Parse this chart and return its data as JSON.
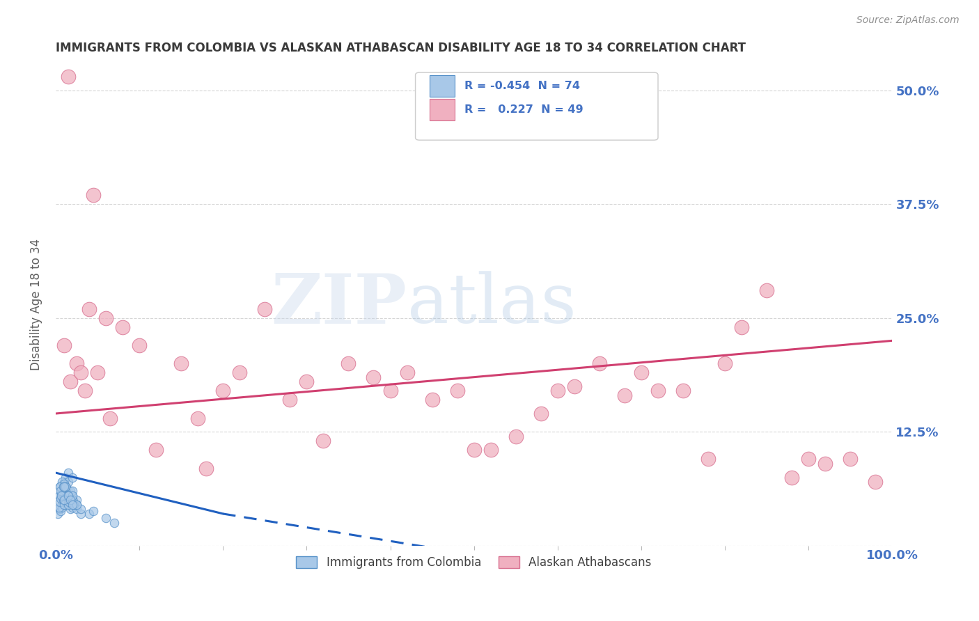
{
  "title": "IMMIGRANTS FROM COLOMBIA VS ALASKAN ATHABASCAN DISABILITY AGE 18 TO 34 CORRELATION CHART",
  "source": "Source: ZipAtlas.com",
  "ylabel": "Disability Age 18 to 34",
  "xlim": [
    0,
    100
  ],
  "ylim": [
    0,
    53
  ],
  "blue_scatter_x": [
    0.3,
    0.5,
    0.6,
    0.8,
    0.8,
    0.8,
    1.0,
    1.0,
    1.0,
    1.0,
    1.0,
    1.0,
    1.2,
    1.2,
    1.4,
    1.5,
    1.5,
    1.5,
    1.5,
    1.6,
    1.8,
    1.8,
    2.0,
    2.0,
    2.0,
    2.0,
    2.2,
    2.5,
    2.5,
    0.4,
    0.4,
    0.5,
    0.6,
    0.7,
    0.9,
    0.9,
    1.0,
    1.1,
    1.3,
    1.5,
    1.6,
    2.0,
    2.3,
    3.0,
    0.5,
    0.8,
    1.0,
    1.2,
    1.5,
    2.0,
    2.5,
    3.0,
    4.0,
    4.5,
    6.0,
    7.0,
    0.5,
    1.0,
    1.2,
    1.5,
    2.0,
    0.6,
    0.9,
    1.2,
    1.4,
    2.0,
    2.2,
    2.5,
    0.7,
    1.0,
    1.5,
    1.8,
    1.0,
    2.0
  ],
  "blue_scatter_y": [
    3.5,
    4.0,
    3.8,
    4.2,
    5.0,
    4.8,
    5.5,
    6.0,
    7.0,
    5.2,
    6.5,
    4.5,
    5.8,
    7.5,
    6.2,
    5.0,
    7.0,
    8.0,
    4.5,
    5.5,
    4.0,
    6.0,
    4.2,
    5.5,
    6.0,
    7.5,
    4.5,
    5.0,
    4.0,
    5.5,
    4.2,
    4.8,
    5.2,
    5.8,
    5.0,
    6.5,
    4.5,
    6.0,
    5.5,
    4.5,
    4.8,
    5.0,
    4.5,
    3.5,
    6.5,
    7.0,
    6.8,
    6.5,
    5.5,
    5.0,
    4.5,
    4.0,
    3.5,
    3.8,
    3.0,
    2.5,
    6.5,
    5.5,
    6.0,
    5.5,
    5.0,
    6.0,
    6.5,
    6.5,
    5.5,
    5.5,
    4.5,
    4.5,
    5.5,
    5.0,
    5.5,
    5.0,
    6.5,
    4.5
  ],
  "pink_scatter_x": [
    1.5,
    1.8,
    2.5,
    3.0,
    3.5,
    4.0,
    5.0,
    6.0,
    8.0,
    10.0,
    12.0,
    15.0,
    17.0,
    20.0,
    22.0,
    25.0,
    28.0,
    30.0,
    32.0,
    35.0,
    38.0,
    40.0,
    42.0,
    45.0,
    48.0,
    50.0,
    52.0,
    55.0,
    58.0,
    60.0,
    62.0,
    65.0,
    68.0,
    70.0,
    72.0,
    75.0,
    78.0,
    80.0,
    82.0,
    85.0,
    88.0,
    90.0,
    92.0,
    95.0,
    98.0,
    1.0,
    4.5,
    6.5,
    18.0
  ],
  "pink_scatter_y": [
    51.5,
    18.0,
    20.0,
    19.0,
    17.0,
    26.0,
    19.0,
    25.0,
    24.0,
    22.0,
    10.5,
    20.0,
    14.0,
    17.0,
    19.0,
    26.0,
    16.0,
    18.0,
    11.5,
    20.0,
    18.5,
    17.0,
    19.0,
    16.0,
    17.0,
    10.5,
    10.5,
    12.0,
    14.5,
    17.0,
    17.5,
    20.0,
    16.5,
    19.0,
    17.0,
    17.0,
    9.5,
    20.0,
    24.0,
    28.0,
    7.5,
    9.5,
    9.0,
    9.5,
    7.0,
    22.0,
    38.5,
    14.0,
    8.5
  ],
  "blue_line_x1": 0.0,
  "blue_line_y1": 8.0,
  "blue_line_x2": 20.0,
  "blue_line_y2": 3.5,
  "blue_dash_x1": 20.0,
  "blue_dash_y1": 3.5,
  "blue_dash_x2": 50.0,
  "blue_dash_y2": -1.0,
  "pink_line_x1": 0.0,
  "pink_line_y1": 14.5,
  "pink_line_x2": 100.0,
  "pink_line_y2": 22.5,
  "background_color": "#ffffff",
  "grid_color": "#cccccc",
  "title_color": "#3a3a3a",
  "source_color": "#909090",
  "axis_label_color": "#606060",
  "blue_dot_color": "#a8c8e8",
  "blue_dot_edge": "#5590c8",
  "pink_dot_color": "#f0b0c0",
  "pink_dot_edge": "#d87090",
  "blue_line_color": "#2060c0",
  "pink_line_color": "#d04070",
  "right_tick_color": "#4472c4",
  "xtick_color": "#4472c4"
}
